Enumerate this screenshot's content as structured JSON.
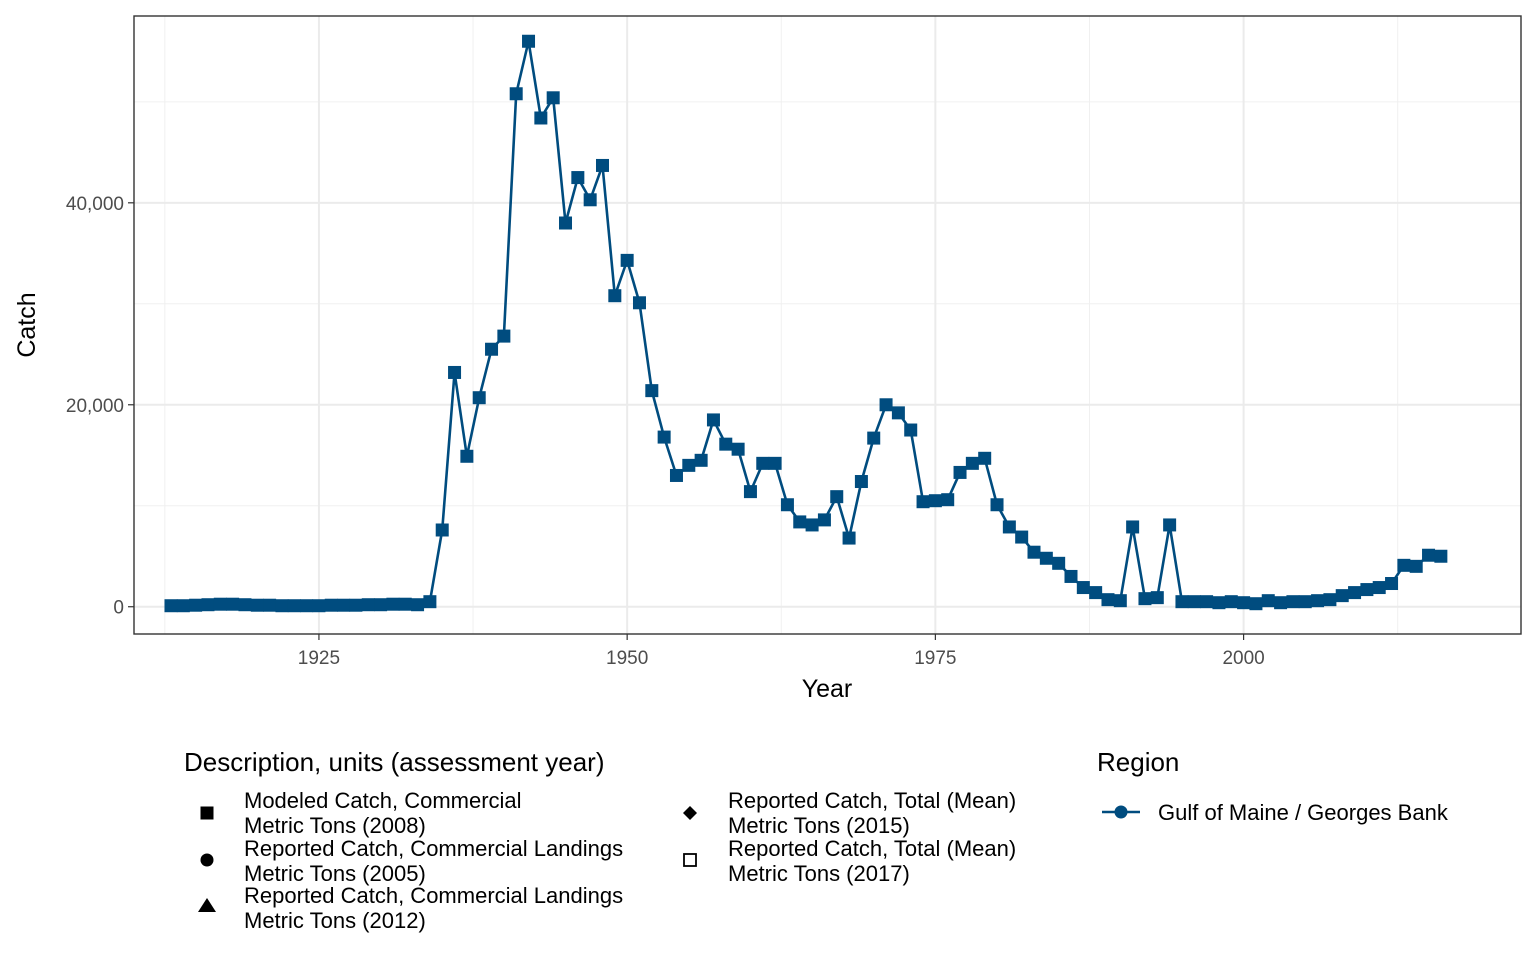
{
  "chart_data": {
    "type": "line",
    "xlabel": "Year",
    "ylabel": "Catch",
    "xlim": [
      1910,
      2022.5
    ],
    "ylim": [
      -2700,
      58500
    ],
    "x_ticks": [
      1925,
      1950,
      1975,
      2000
    ],
    "x_tick_labels": [
      "1925",
      "1950",
      "1975",
      "2000"
    ],
    "y_ticks": [
      0,
      20000,
      40000
    ],
    "y_tick_labels": [
      "0",
      "20,000",
      "40,000"
    ],
    "grid": true,
    "line_color": "#004c7f",
    "series": [
      {
        "name": "Gulf of Maine / Georges Bank",
        "x": [
          1913,
          1914,
          1915,
          1916,
          1917,
          1918,
          1919,
          1920,
          1921,
          1922,
          1923,
          1924,
          1925,
          1926,
          1927,
          1928,
          1929,
          1930,
          1931,
          1932,
          1933,
          1934,
          1935,
          1936,
          1937,
          1938,
          1939,
          1940,
          1941,
          1942,
          1943,
          1944,
          1945,
          1946,
          1947,
          1948,
          1949,
          1950,
          1951,
          1952,
          1953,
          1954,
          1955,
          1956,
          1957,
          1958,
          1959,
          1960,
          1961,
          1962,
          1963,
          1964,
          1965,
          1966,
          1967,
          1968,
          1969,
          1970,
          1971,
          1972,
          1973,
          1974,
          1975,
          1976,
          1977,
          1978,
          1979,
          1980,
          1981,
          1982,
          1983,
          1984,
          1985,
          1986,
          1987,
          1988,
          1989,
          1990,
          1991,
          1992,
          1993,
          1994,
          1995,
          1996,
          1997,
          1998,
          1999,
          2000,
          2001,
          2002,
          2003,
          2004,
          2005,
          2006,
          2007,
          2008,
          2009,
          2010,
          2011,
          2012,
          2013,
          2014,
          2015,
          2016
        ],
        "values": [
          100,
          100,
          150,
          200,
          250,
          250,
          200,
          150,
          150,
          100,
          100,
          100,
          100,
          150,
          150,
          150,
          200,
          200,
          250,
          250,
          200,
          500,
          7600,
          23200,
          14900,
          20700,
          25500,
          26800,
          50800,
          56000,
          48400,
          50400,
          38000,
          42500,
          40300,
          43700,
          30800,
          34300,
          30100,
          21400,
          16800,
          13000,
          14000,
          14500,
          18500,
          16100,
          15600,
          11400,
          14200,
          14200,
          10100,
          8400,
          8100,
          8600,
          10900,
          6800,
          12400,
          16700,
          20000,
          19200,
          17500,
          10400,
          10500,
          10600,
          13300,
          14200,
          14700,
          10100,
          7900,
          6900,
          5400,
          4800,
          4300,
          3000,
          1900,
          1400,
          700,
          600,
          7900,
          800,
          900,
          8100,
          500,
          500,
          500,
          400,
          500,
          400,
          300,
          600,
          400,
          500,
          500,
          600,
          700,
          1100,
          1400,
          1700,
          1900,
          2300,
          4100,
          4000,
          5100,
          5000
        ]
      }
    ],
    "marker_keys": [
      {
        "shape": "square",
        "line1": "Modeled Catch, Commercial",
        "line2": "Metric Tons (2008)"
      },
      {
        "shape": "circle",
        "line1": "Reported Catch, Commercial Landings",
        "line2": "Metric Tons (2005)"
      },
      {
        "shape": "triangle",
        "line1": "Reported Catch, Commercial Landings",
        "line2": "Metric Tons (2012)"
      },
      {
        "shape": "diamond",
        "line1": "Reported Catch, Total (Mean)",
        "line2": "Metric Tons (2015)"
      },
      {
        "shape": "open-square",
        "line1": "Reported Catch, Total (Mean)",
        "line2": "Metric Tons (2017)"
      }
    ],
    "legend": {
      "shape_title": "Description, units (assessment year)",
      "region_title": "Region",
      "region_label": "Gulf of Maine / Georges Bank",
      "placement": "bottom"
    }
  }
}
